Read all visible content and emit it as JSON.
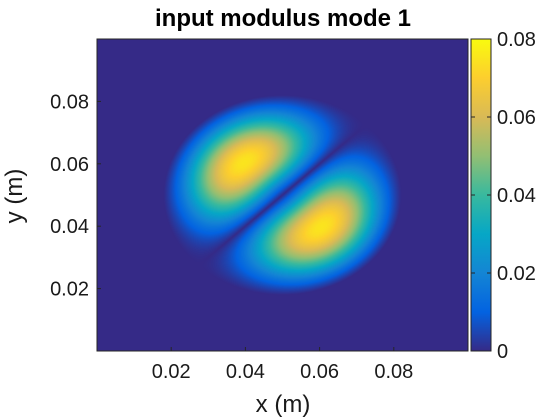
{
  "chart_data": {
    "type": "heatmap",
    "title": "input modulus mode 1",
    "xlabel": "x (m)",
    "ylabel": "y (m)",
    "xlim": [
      0,
      0.1
    ],
    "ylim": [
      0,
      0.1
    ],
    "xticks": [
      0.02,
      0.04,
      0.06,
      0.08
    ],
    "xtick_labels": [
      "0.02",
      "0.04",
      "0.06",
      "0.08"
    ],
    "yticks": [
      0.02,
      0.04,
      0.06,
      0.08
    ],
    "ytick_labels": [
      "0.02",
      "0.04",
      "0.06",
      "0.08"
    ],
    "colormap": "parula",
    "clim": [
      0,
      0.08
    ],
    "colorbar": {
      "ticks": [
        0,
        0.02,
        0.04,
        0.06,
        0.08
      ],
      "tick_labels": [
        "0",
        "0.02",
        "0.04",
        "0.06",
        "0.08"
      ]
    },
    "field": {
      "lobes": [
        {
          "x": 0.042,
          "y": 0.058,
          "peak": 0.075
        },
        {
          "x": 0.058,
          "y": 0.042,
          "peak": 0.075
        }
      ],
      "center": [
        0.05,
        0.05
      ],
      "nodal_line": "diagonal x - y = 0",
      "outer_radius": 0.032
    },
    "grid": false
  },
  "colors": {
    "parula": [
      "#352a87",
      "#0363e1",
      "#1485d4",
      "#06a7c6",
      "#38b99e",
      "#92bf73",
      "#d9ba56",
      "#fcce2e",
      "#f9fb0e"
    ]
  }
}
